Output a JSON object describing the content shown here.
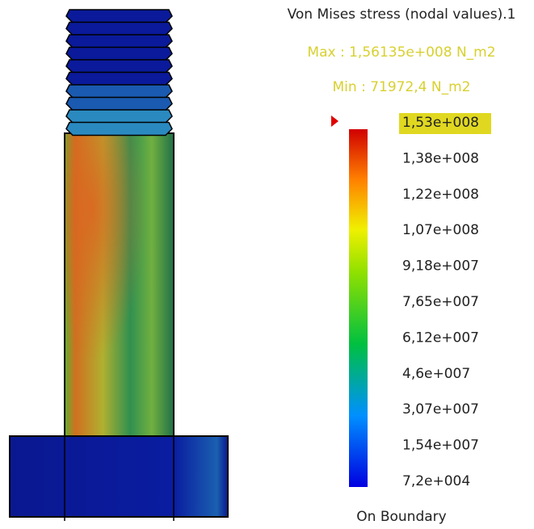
{
  "legend": {
    "title": "Von Mises stress (nodal values).1",
    "max": "Max : 1,56135e+008 N_m2",
    "min": "Min : 71972,4 N_m2",
    "labels": [
      "1,53e+008",
      "1,38e+008",
      "1,22e+008",
      "1,07e+008",
      "9,18e+007",
      "7,65e+007",
      "6,12e+007",
      "4,6e+007",
      "3,07e+007",
      "1,54e+007",
      "7,2e+004"
    ],
    "footer": "On Boundary"
  }
}
